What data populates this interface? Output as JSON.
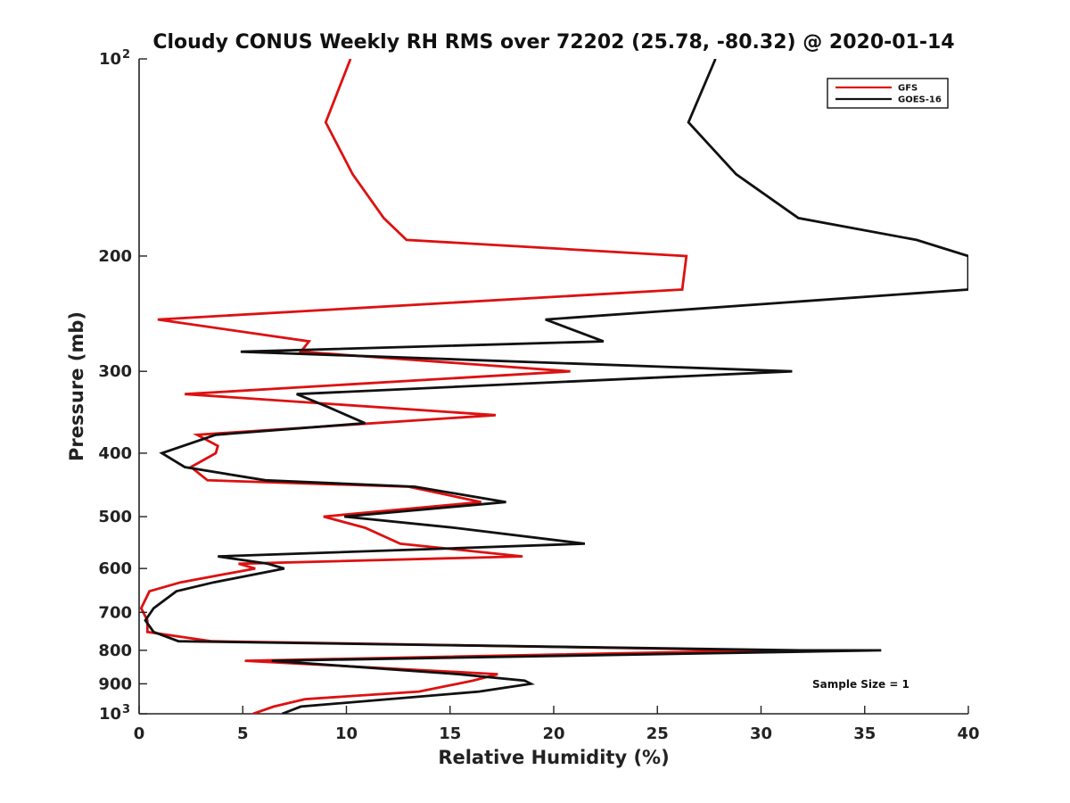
{
  "chart_data": {
    "type": "line",
    "title": "Cloudy CONUS Weekly RH RMS over 72202 (25.78, -80.32) @ 2020-01-14",
    "xlabel": "Relative Humidity (%)",
    "ylabel": "Pressure (mb)",
    "xlim": [
      0,
      40
    ],
    "ylim": [
      100,
      1000
    ],
    "y_scale": "log",
    "y_reversed": true,
    "grid": false,
    "legend_position": "top-right",
    "x_ticks": [
      0,
      5,
      10,
      15,
      20,
      25,
      30,
      35,
      40
    ],
    "x_tick_labels": [
      "0",
      "5",
      "10",
      "15",
      "20",
      "25",
      "30",
      "35",
      "40"
    ],
    "y_ticks": [
      100,
      200,
      300,
      400,
      500,
      600,
      700,
      800,
      900,
      1000
    ],
    "y_tick_labels": [
      {
        "base": "10",
        "sup": "2"
      },
      {
        "base": "200",
        "sup": ""
      },
      {
        "base": "300",
        "sup": ""
      },
      {
        "base": "400",
        "sup": ""
      },
      {
        "base": "500",
        "sup": ""
      },
      {
        "base": "600",
        "sup": ""
      },
      {
        "base": "700",
        "sup": ""
      },
      {
        "base": "800",
        "sup": ""
      },
      {
        "base": "900",
        "sup": ""
      },
      {
        "base": "10",
        "sup": "3"
      }
    ],
    "annotation": "Sample Size = 1",
    "series": [
      {
        "name": "GFS",
        "color": "#dd1111",
        "points": [
          [
            10.2,
            100
          ],
          [
            9.0,
            125
          ],
          [
            10.3,
            150
          ],
          [
            11.8,
            175
          ],
          [
            12.9,
            189
          ],
          [
            26.4,
            200
          ],
          [
            26.2,
            225
          ],
          [
            0.9,
            250
          ],
          [
            8.2,
            270
          ],
          [
            7.8,
            280
          ],
          [
            20.8,
            300
          ],
          [
            2.2,
            325
          ],
          [
            17.2,
            350
          ],
          [
            2.8,
            375
          ],
          [
            3.8,
            390
          ],
          [
            3.7,
            400
          ],
          [
            2.5,
            420
          ],
          [
            3.3,
            440
          ],
          [
            13.0,
            450
          ],
          [
            16.5,
            475
          ],
          [
            8.9,
            500
          ],
          [
            10.9,
            520
          ],
          [
            12.6,
            550
          ],
          [
            18.5,
            575
          ],
          [
            4.8,
            590
          ],
          [
            5.6,
            600
          ],
          [
            2.0,
            630
          ],
          [
            0.5,
            650
          ],
          [
            0.1,
            690
          ],
          [
            0.4,
            720
          ],
          [
            0.4,
            750
          ],
          [
            3.5,
            775
          ],
          [
            30.3,
            800
          ],
          [
            5.1,
            830
          ],
          [
            17.3,
            870
          ],
          [
            16.1,
            890
          ],
          [
            13.5,
            925
          ],
          [
            8.0,
            950
          ],
          [
            6.5,
            975
          ],
          [
            5.5,
            1000
          ]
        ]
      },
      {
        "name": "GOES-16",
        "color": "#111111",
        "points": [
          [
            27.8,
            100
          ],
          [
            26.5,
            125
          ],
          [
            28.8,
            150
          ],
          [
            31.8,
            175
          ],
          [
            37.5,
            189
          ],
          [
            40.0,
            200
          ],
          [
            40.0,
            225
          ],
          [
            19.6,
            250
          ],
          [
            22.4,
            270
          ],
          [
            4.9,
            280
          ],
          [
            31.5,
            300
          ],
          [
            7.6,
            325
          ],
          [
            9.1,
            340
          ],
          [
            10.9,
            360
          ],
          [
            3.7,
            375
          ],
          [
            1.1,
            400
          ],
          [
            2.2,
            420
          ],
          [
            6.1,
            440
          ],
          [
            13.3,
            450
          ],
          [
            17.7,
            475
          ],
          [
            9.9,
            500
          ],
          [
            15.2,
            520
          ],
          [
            21.5,
            550
          ],
          [
            3.8,
            575
          ],
          [
            6.2,
            590
          ],
          [
            7.0,
            600
          ],
          [
            3.6,
            630
          ],
          [
            1.8,
            650
          ],
          [
            0.7,
            690
          ],
          [
            0.3,
            720
          ],
          [
            0.7,
            750
          ],
          [
            1.9,
            775
          ],
          [
            31.9,
            800
          ],
          [
            35.8,
            800
          ],
          [
            6.4,
            830
          ],
          [
            15.4,
            870
          ],
          [
            18.6,
            890
          ],
          [
            18.9,
            900
          ],
          [
            16.4,
            925
          ],
          [
            7.8,
            975
          ],
          [
            6.9,
            1000
          ]
        ]
      }
    ]
  }
}
